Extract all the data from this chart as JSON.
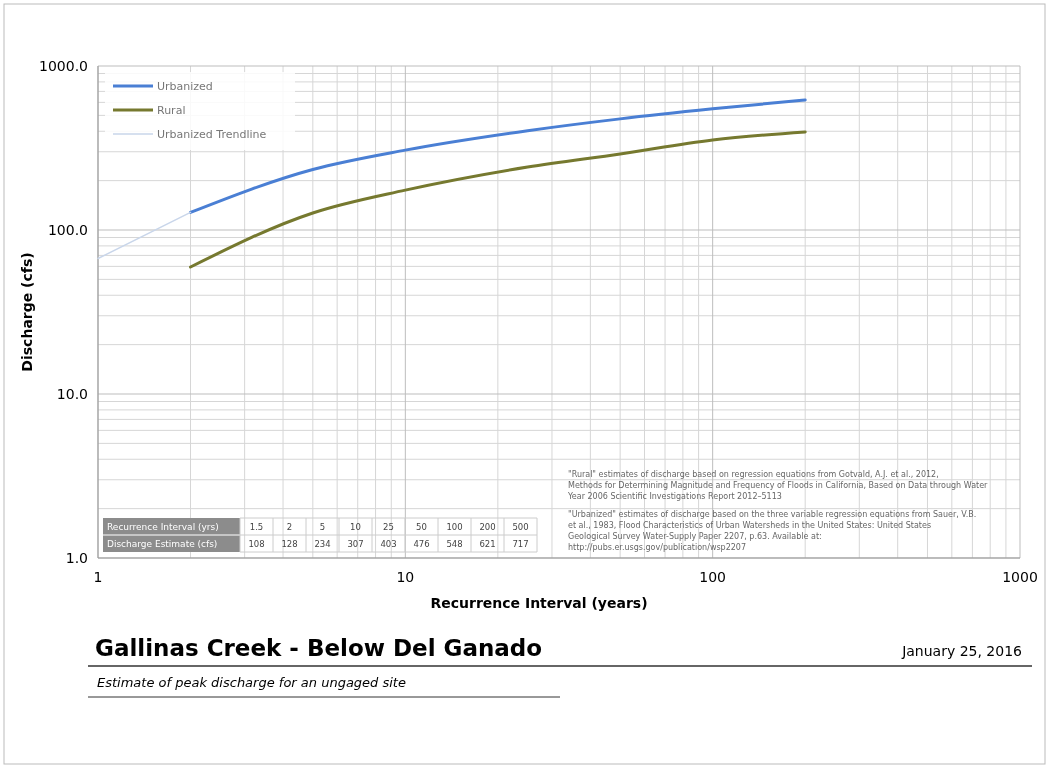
{
  "chart_data": {
    "type": "line",
    "title": "Gallinas Creek - Below Del Ganado",
    "subtitle": "Estimate of peak discharge for an ungaged site",
    "xlabel": "Recurrence Interval (years)",
    "ylabel": "Discharge (cfs)",
    "series": [
      {
        "name": "Urbanized",
        "color": "#4a7fd4",
        "x": [
          2,
          5,
          10,
          25,
          50,
          100,
          200
        ],
        "values": [
          128,
          234,
          307,
          403,
          476,
          548,
          621
        ]
      },
      {
        "name": "Rural",
        "color": "#76792f",
        "x": [
          2,
          5,
          10,
          25,
          50,
          100,
          200
        ],
        "values": [
          59.5,
          127,
          175,
          242,
          291,
          354,
          396
        ]
      },
      {
        "name": "Urbanized Trendline",
        "color": "#c9d6ea",
        "x": [
          1,
          2
        ],
        "values": [
          67,
          128
        ]
      }
    ],
    "log": "xy",
    "xlim": [
      1,
      1000
    ],
    "ylim": [
      1,
      1000
    ],
    "xticks": [
      1,
      10,
      100,
      1000
    ],
    "yticks": [
      {
        "value": 1,
        "label": "1.0"
      },
      {
        "value": 10,
        "label": "10.0"
      },
      {
        "value": 100,
        "label": "100.0"
      },
      {
        "value": 1000,
        "label": "1000.0"
      }
    ],
    "grid": true,
    "legend": "top left",
    "line_style": "solid",
    "marker": "none",
    "annotations": [
      "Recurrence Interval (yrs) 1.5 2 5 10 25 50 100 200 500",
      "Discharge Estimate (cfs) 108 128 234 307 403 476 548 621 717",
      "\"Rural\" estimates of discharge based on regression equations from Gotvald, A.J. et al., 2012, Methods for Determining Magnitude and Frequency of Floods in California, Based on Data through Water Year 2006 Scientific Investigations Report 2012–5113",
      "\"Urbanized\" estimates of discharge based on the three variable regression equations from Sauer, V.B. et al., 1983, Flood Characteristics of Urban Watersheds in the United States: United States Geological Survey Water-Supply Paper 2207, p.63. Available at: http://pubs.er.usgs.gov/publication/wsp2207",
      "January 25, 2016"
    ]
  }
}
